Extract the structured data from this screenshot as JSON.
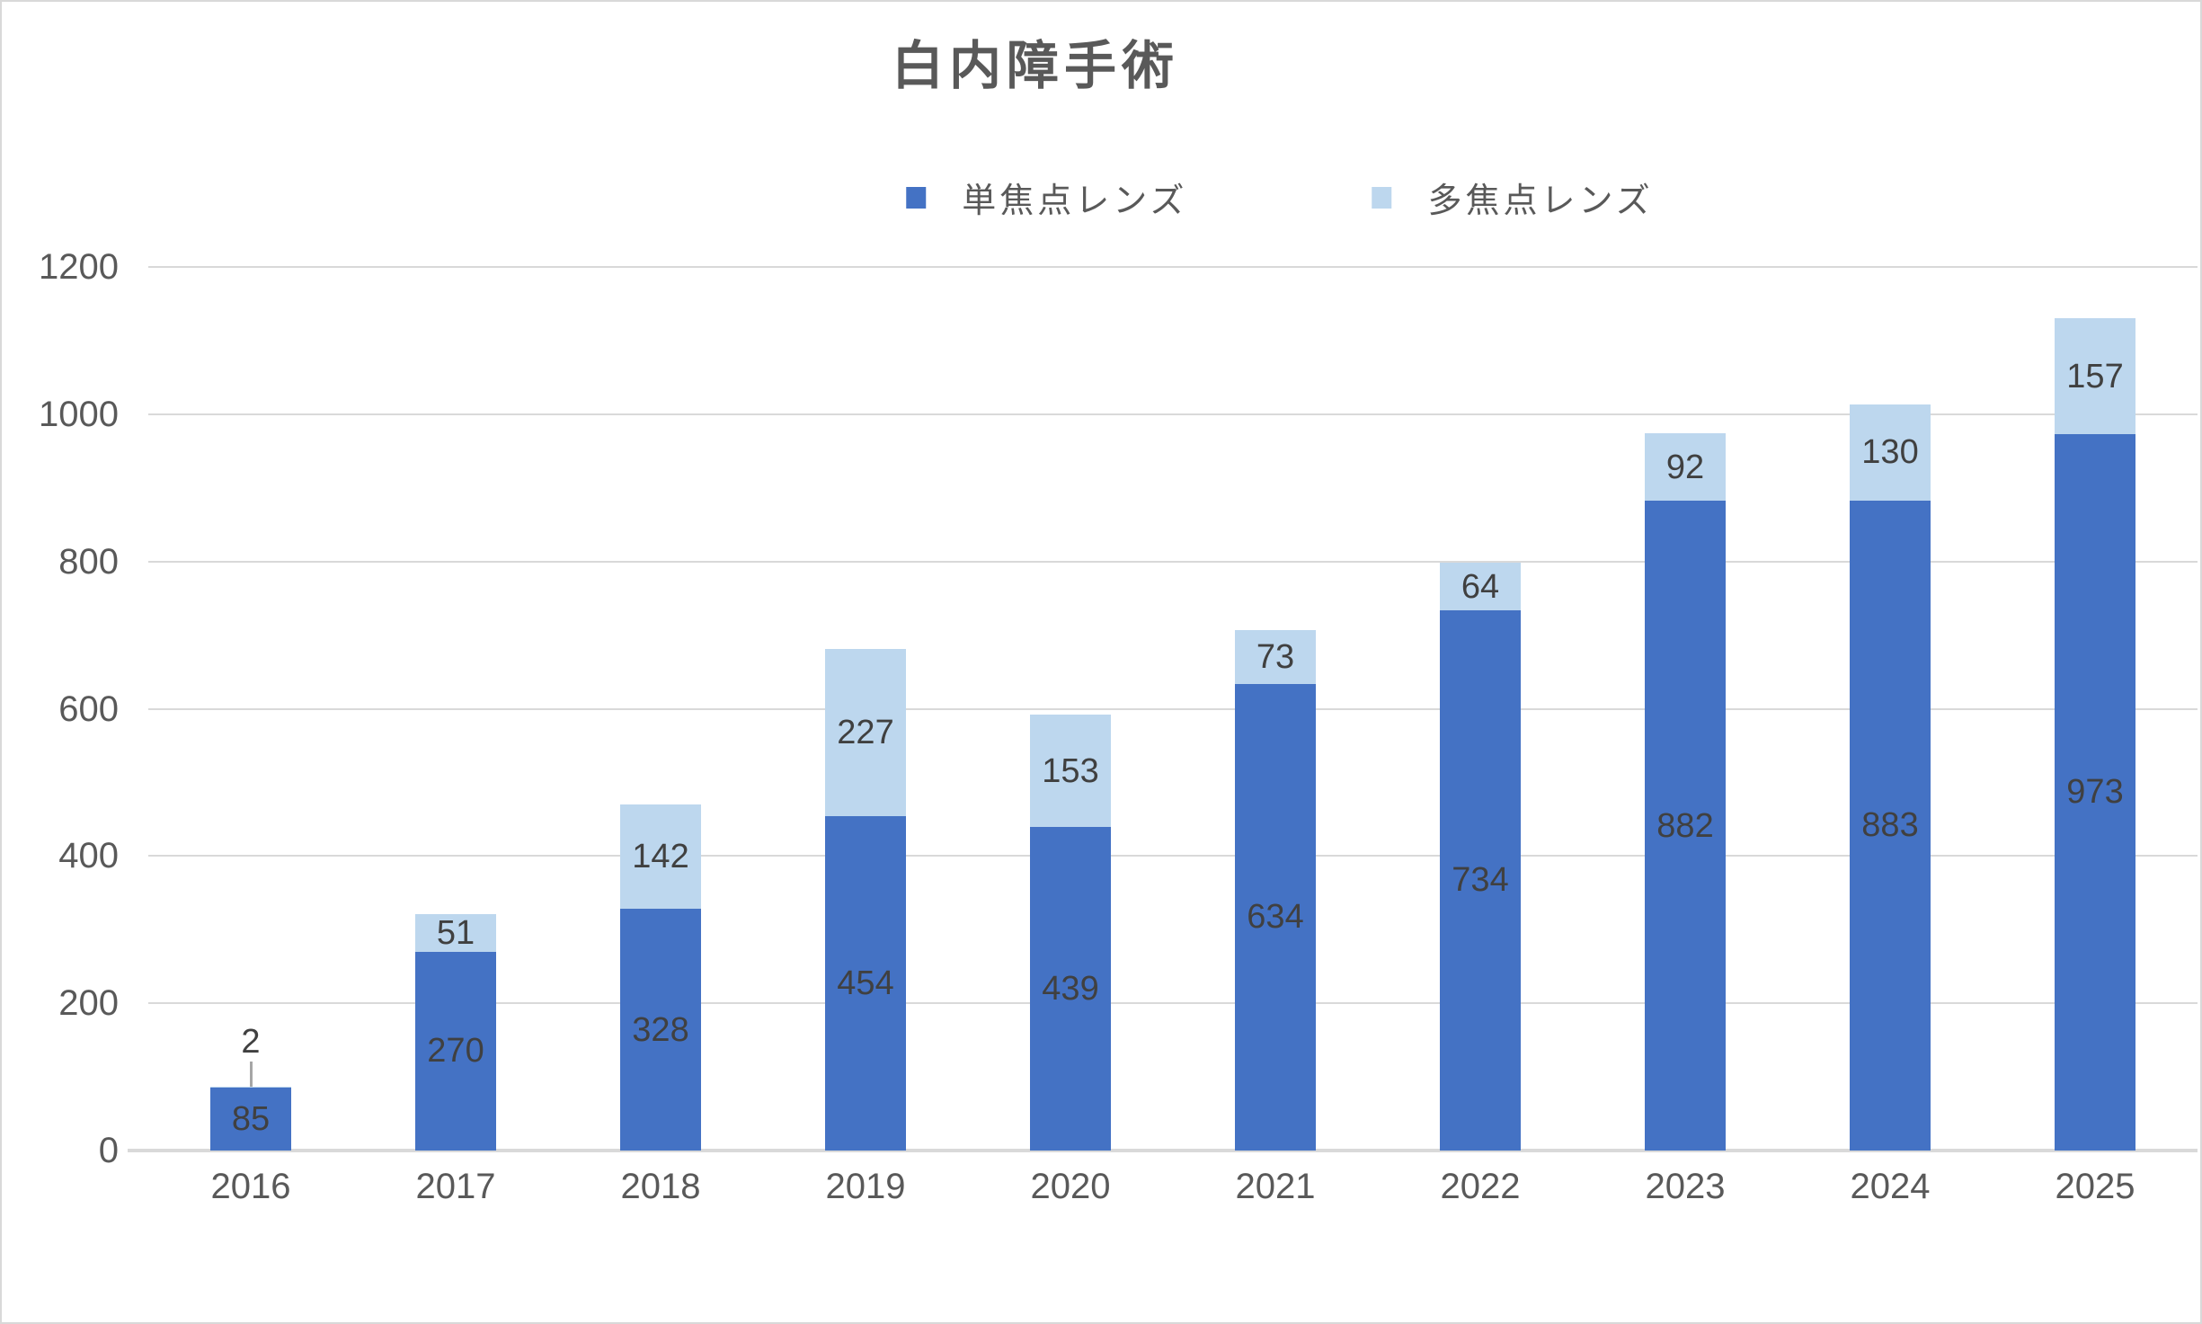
{
  "chart": {
    "title": "白内障手術"
  },
  "chart_data": {
    "type": "bar",
    "stacked": true,
    "title": "白内障手術",
    "categories": [
      "2016",
      "2017",
      "2018",
      "2019",
      "2020",
      "2021",
      "2022",
      "2023",
      "2024",
      "2025"
    ],
    "series": [
      {
        "name": "単焦点レンズ",
        "color": "#4472c4",
        "values": [
          85,
          270,
          328,
          454,
          439,
          634,
          734,
          882,
          883,
          973
        ]
      },
      {
        "name": "多焦点レンズ",
        "color": "#bdd7ee",
        "values": [
          2,
          51,
          142,
          227,
          153,
          73,
          64,
          92,
          130,
          157
        ]
      }
    ],
    "totals": [
      87,
      321,
      470,
      681,
      592,
      707,
      798,
      974,
      1013,
      1130
    ],
    "xlabel": "",
    "ylabel": "",
    "ylim": [
      0,
      1200
    ],
    "y_ticks": [
      0,
      200,
      400,
      600,
      800,
      1000,
      1200
    ],
    "grid": true,
    "legend_position": "top",
    "data_labels": true,
    "callout": {
      "category": "2016",
      "series": "多焦点レンズ",
      "label": "2",
      "note": "leader line above bar"
    },
    "colors": {
      "grid": "#d9d9d9",
      "axis_line": "#d9d9d9",
      "tick_text": "#595959",
      "title_text": "#595959",
      "data_label_text": "#404040",
      "leader_line": "#a6a6a6",
      "border": "#d9d9d9"
    }
  }
}
